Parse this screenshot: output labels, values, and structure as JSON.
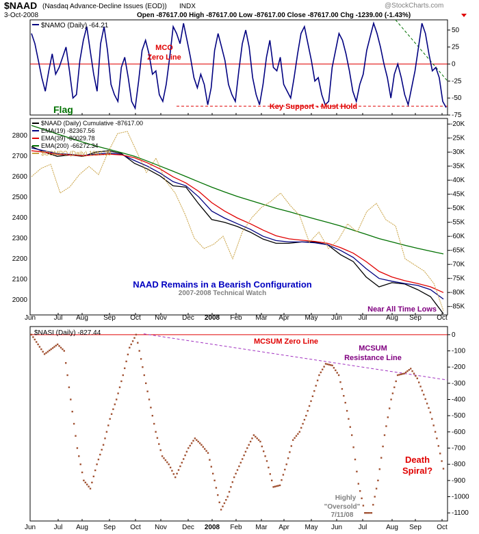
{
  "header": {
    "symbol": "$NAAD",
    "name": "(Nasdaq Advance-Decline Issues (EOD))",
    "exchange": "INDX",
    "date": "3-Oct-2008",
    "quote": "Open -87617.00  High -87617.00  Low -87617.00  Close -87617.00  Chg -1239.00 (-1.43%)",
    "watermark": "@StockCharts.com"
  },
  "x_axis_labels": [
    "Jun",
    "Jul",
    "Aug",
    "Sep",
    "Oct",
    "Nov",
    "Dec",
    "2008",
    "Feb",
    "Mar",
    "Apr",
    "May",
    "Jun",
    "Jul",
    "Aug",
    "Sep",
    "Oct"
  ],
  "colors": {
    "namo": "#000080",
    "naad": "#000000",
    "ema19": "#000080",
    "ema39": "#e00000",
    "ema200": "#007000",
    "compo": "#c8a040",
    "nasi": "#a05030",
    "red_text": "#e00000",
    "green_text": "#007000",
    "blue_text": "#0000c0",
    "purple_text": "#800080",
    "gray_text": "#808080"
  },
  "chart_data": [
    {
      "type": "line",
      "panel": "top",
      "legend": "$NAMO (Daily) -64.21",
      "ylim": [
        -75,
        65
      ],
      "y_ticks": [
        50,
        25,
        0,
        -25,
        -50,
        -75
      ],
      "series": [
        {
          "name": "$NAMO (Daily)",
          "values": [
            45,
            30,
            5,
            -20,
            -40,
            -10,
            15,
            -15,
            -5,
            10,
            25,
            -10,
            -50,
            -45,
            5,
            35,
            55,
            20,
            -15,
            -40,
            30,
            55,
            20,
            -30,
            -45,
            -55,
            -5,
            10,
            -20,
            -55,
            -65,
            -25,
            20,
            35,
            15,
            -15,
            -10,
            -45,
            -55,
            -30,
            10,
            55,
            45,
            30,
            60,
            35,
            10,
            -20,
            -35,
            -15,
            -30,
            -60,
            -35,
            20,
            45,
            25,
            5,
            -30,
            -45,
            -55,
            -10,
            30,
            50,
            25,
            -20,
            -45,
            -60,
            -30,
            10,
            35,
            -5,
            -10,
            10,
            -30,
            -40,
            -50,
            -20,
            15,
            45,
            55,
            30,
            5,
            -25,
            -20,
            -45,
            -60,
            -55,
            -5,
            20,
            45,
            35,
            15,
            -10,
            -40,
            -55,
            -30,
            -15,
            20,
            40,
            60,
            45,
            25,
            0,
            -20,
            -50,
            -15,
            0,
            -20,
            -45,
            -60,
            -35,
            -10,
            25,
            60,
            45,
            15,
            -10,
            -5,
            -20,
            -55,
            -64
          ]
        }
      ],
      "annotations": [
        "MCO",
        "Zero Line",
        "Key Support - Must Hold",
        "Flag"
      ]
    },
    {
      "type": "line",
      "panel": "middle",
      "legend": [
        "$NAAD (Daily) Cumulative -87617.00",
        "EMA(19) -82367.56",
        "EMA(39) -80029.78",
        "EMA(200) -66272.34",
        "$COMPO (Daily) 1947.39"
      ],
      "left_axis_ticks": [
        2800,
        2700,
        2600,
        2500,
        2400,
        2300,
        2200,
        2100,
        2000
      ],
      "right_axis_ticks": [
        "-20K",
        "-25K",
        "-30K",
        "-35K",
        "-40K",
        "-45K",
        "-50K",
        "-55K",
        "-60K",
        "-65K",
        "-70K",
        "-75K",
        "-80K",
        "-85K"
      ],
      "right_ylim": [
        -88000,
        -18000
      ],
      "series": [
        {
          "name": "$NAAD (Daily) Cumulative",
          "values": [
            -28000,
            -30000,
            -31500,
            -31000,
            -31500,
            -30000,
            -29500,
            -30500,
            -34000,
            -36000,
            -38500,
            -42000,
            -42500,
            -48500,
            -54000,
            -55000,
            -56500,
            -58500,
            -61000,
            -62500,
            -62500,
            -62000,
            -62000,
            -63000,
            -66500,
            -69000,
            -74500,
            -78000,
            -76500,
            -77000,
            -79000,
            -81500,
            -87617
          ]
        },
        {
          "name": "EMA(19)",
          "values": [
            -28500,
            -29500,
            -30500,
            -30800,
            -31200,
            -30700,
            -30300,
            -30800,
            -33000,
            -35000,
            -37500,
            -40500,
            -42000,
            -46000,
            -51000,
            -53500,
            -55500,
            -57500,
            -60000,
            -61500,
            -62000,
            -62000,
            -62300,
            -63000,
            -65000,
            -67500,
            -71500,
            -75000,
            -76000,
            -76800,
            -77500,
            -79000,
            -82368
          ]
        },
        {
          "name": "EMA(39)",
          "values": [
            -29500,
            -30000,
            -30800,
            -31000,
            -31300,
            -31000,
            -30700,
            -31000,
            -32000,
            -33800,
            -36000,
            -38800,
            -41000,
            -44000,
            -48000,
            -51000,
            -53500,
            -55500,
            -57800,
            -59800,
            -60900,
            -61400,
            -61800,
            -62500,
            -64000,
            -66000,
            -69000,
            -72500,
            -74500,
            -75800,
            -76800,
            -78000,
            -80030
          ]
        },
        {
          "name": "EMA(200)",
          "values": [
            -20500,
            -22000,
            -23500,
            -25000,
            -26500,
            -27800,
            -29000,
            -30200,
            -31500,
            -33200,
            -35000,
            -36800,
            -38700,
            -40600,
            -42500,
            -44200,
            -45800,
            -47200,
            -48600,
            -50000,
            -51200,
            -52500,
            -53800,
            -55000,
            -56300,
            -57800,
            -59300,
            -60800,
            -62000,
            -63200,
            -64300,
            -65300,
            -66272
          ]
        },
        {
          "name": "$COMPO (Daily)",
          "axis": "left",
          "values": [
            2600,
            2640,
            2660,
            2520,
            2550,
            2610,
            2650,
            2610,
            2720,
            2810,
            2820,
            2720,
            2620,
            2690,
            2580,
            2520,
            2420,
            2300,
            2250,
            2270,
            2310,
            2200,
            2330,
            2400,
            2450,
            2480,
            2520,
            2460,
            2410,
            2280,
            2330,
            2250,
            2290,
            2370,
            2330,
            2430,
            2470,
            2390,
            2360,
            2200,
            2170,
            2140,
            2080,
            1947
          ]
        }
      ],
      "annotations": [
        "NAAD Remains in a Bearish Configuration",
        "2007-2008 Technical Watch",
        "Near All Time Lows"
      ]
    },
    {
      "type": "scatter",
      "panel": "bottom",
      "legend": "$NASI (Daily) -827.44",
      "ylim": [
        -1150,
        50
      ],
      "y_ticks": [
        0,
        -100,
        -200,
        -300,
        -400,
        -500,
        -600,
        -700,
        -800,
        -900,
        -1000,
        -1100
      ],
      "series": [
        {
          "name": "$NASI (Daily)",
          "values": [
            0,
            -60,
            -120,
            -90,
            -60,
            -100,
            -400,
            -700,
            -900,
            -950,
            -800,
            -680,
            -520,
            -400,
            -250,
            -80,
            0,
            -200,
            -400,
            -600,
            -750,
            -800,
            -880,
            -790,
            -700,
            -640,
            -680,
            -730,
            -900,
            -1080,
            -1000,
            -880,
            -790,
            -700,
            -620,
            -660,
            -780,
            -940,
            -930,
            -800,
            -650,
            -600,
            -500,
            -380,
            -250,
            -180,
            -190,
            -250,
            -420,
            -620,
            -920,
            -1100,
            -1100,
            -900,
            -620,
            -400,
            -250,
            -240,
            -210,
            -270,
            -370,
            -480,
            -640,
            -827
          ]
        }
      ],
      "annotations": [
        "MCSUM Zero Line",
        "MCSUM",
        "Resistance Line",
        "Death",
        "Spiral?",
        "Highly",
        "\"Oversold\"",
        "7/11/08"
      ]
    }
  ],
  "labels": {
    "mco": "MCO",
    "zero_line": "Zero Line",
    "key_support": "Key Support - Must Hold",
    "flag": "Flag",
    "bearish_title": "NAAD Remains in a Bearish Configuration",
    "tech_watch": "2007-2008 Technical Watch",
    "near_lows": "Near All Time Lows",
    "mcsum_zero": "MCSUM Zero Line",
    "mcsum": "MCSUM",
    "resistance": "Resistance Line",
    "death": "Death",
    "spiral": "Spiral?",
    "highly": "Highly",
    "oversold": "\"Oversold\"",
    "date_note": "7/11/08"
  }
}
